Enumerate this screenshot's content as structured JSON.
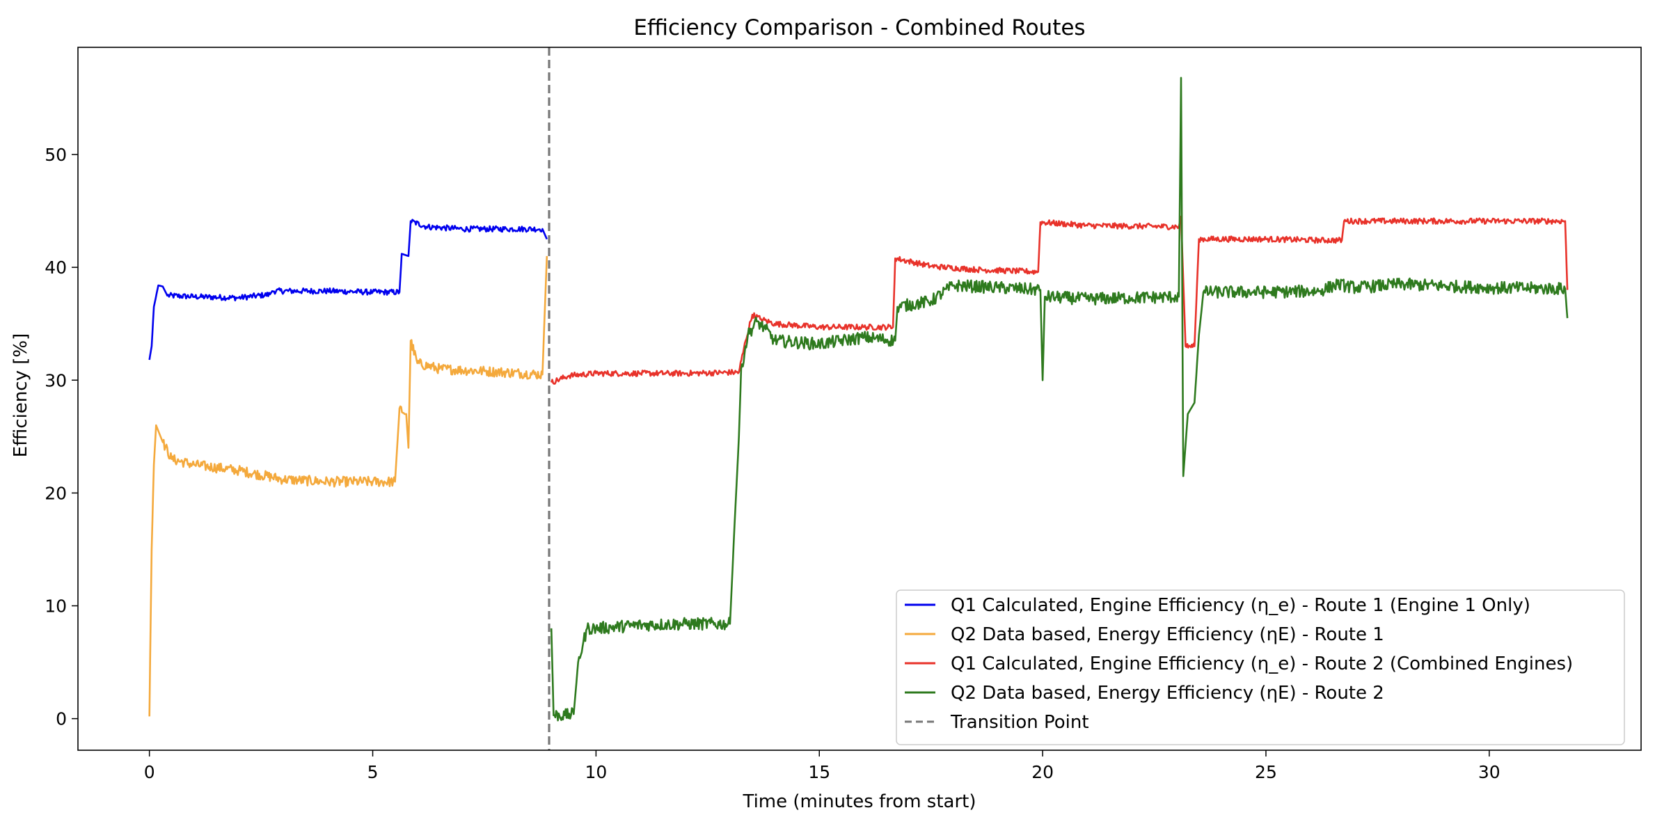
{
  "chart_data": {
    "type": "line",
    "title": "Efficiency Comparison - Combined Routes",
    "xlabel": "Time (minutes from start)",
    "ylabel": "Efficiency [%]",
    "xlim": [
      -1.6,
      33.4
    ],
    "ylim": [
      -2.8,
      59.5
    ],
    "xticks": [
      0,
      5,
      10,
      15,
      20,
      25,
      30
    ],
    "yticks": [
      0,
      10,
      20,
      30,
      40,
      50
    ],
    "grid": false,
    "legend_position": "lower-right",
    "transition": {
      "x": 8.95,
      "label": "Transition Point",
      "color": "#777777"
    },
    "series": [
      {
        "name": "Q1 Calculated, Engine Efficiency (η_e) - Route 1 (Engine 1 Only)",
        "color": "#0000ee",
        "noise": 0.25,
        "points": [
          [
            0.0,
            31.8
          ],
          [
            0.05,
            33.0
          ],
          [
            0.1,
            36.5
          ],
          [
            0.2,
            38.4
          ],
          [
            0.3,
            38.3
          ],
          [
            0.4,
            37.5
          ],
          [
            1.0,
            37.4
          ],
          [
            2.0,
            37.3
          ],
          [
            2.7,
            37.6
          ],
          [
            2.75,
            37.9
          ],
          [
            4.0,
            37.9
          ],
          [
            5.0,
            37.8
          ],
          [
            5.6,
            37.8
          ],
          [
            5.65,
            41.2
          ],
          [
            5.8,
            41.0
          ],
          [
            5.85,
            44.1
          ],
          [
            6.2,
            43.6
          ],
          [
            7.0,
            43.4
          ],
          [
            8.0,
            43.4
          ],
          [
            8.8,
            43.4
          ],
          [
            8.9,
            42.5
          ]
        ]
      },
      {
        "name": "Q2 Data based, Energy Efficiency (ηE) - Route 1",
        "color": "#f4a93c",
        "noise": 0.45,
        "points": [
          [
            0.0,
            0.2
          ],
          [
            0.05,
            15.0
          ],
          [
            0.1,
            22.5
          ],
          [
            0.15,
            26.0
          ],
          [
            0.3,
            24.5
          ],
          [
            0.5,
            23.0
          ],
          [
            1.0,
            22.5
          ],
          [
            2.0,
            22.0
          ],
          [
            3.0,
            21.2
          ],
          [
            4.0,
            21.0
          ],
          [
            5.0,
            21.0
          ],
          [
            5.5,
            21.0
          ],
          [
            5.6,
            27.5
          ],
          [
            5.75,
            27.0
          ],
          [
            5.8,
            24.0
          ],
          [
            5.85,
            33.5
          ],
          [
            6.0,
            31.5
          ],
          [
            6.5,
            31.0
          ],
          [
            7.5,
            30.8
          ],
          [
            8.8,
            30.5
          ],
          [
            8.9,
            41.0
          ]
        ]
      },
      {
        "name": "Q1 Calculated, Engine Efficiency (η_e) - Route 2 (Combined Engines)",
        "color": "#e8322a",
        "noise": 0.25,
        "points": [
          [
            9.0,
            29.8
          ],
          [
            9.4,
            30.4
          ],
          [
            10.0,
            30.6
          ],
          [
            11.0,
            30.6
          ],
          [
            12.0,
            30.6
          ],
          [
            13.2,
            30.7
          ],
          [
            13.35,
            33.5
          ],
          [
            13.5,
            35.8
          ],
          [
            13.7,
            35.4
          ],
          [
            14.0,
            35.0
          ],
          [
            15.0,
            34.7
          ],
          [
            16.0,
            34.7
          ],
          [
            16.65,
            34.7
          ],
          [
            16.7,
            40.8
          ],
          [
            17.5,
            40.1
          ],
          [
            18.5,
            39.8
          ],
          [
            19.9,
            39.6
          ],
          [
            19.95,
            44.0
          ],
          [
            21.0,
            43.7
          ],
          [
            23.05,
            43.6
          ],
          [
            23.1,
            44.5
          ],
          [
            23.2,
            33.0
          ],
          [
            23.4,
            33.0
          ],
          [
            23.5,
            42.5
          ],
          [
            25.0,
            42.5
          ],
          [
            26.2,
            42.4
          ],
          [
            26.7,
            42.4
          ],
          [
            26.75,
            44.1
          ],
          [
            28.0,
            44.1
          ],
          [
            31.7,
            44.1
          ],
          [
            31.75,
            38.0
          ]
        ]
      },
      {
        "name": "Q2 Data based, Energy Efficiency (ηE) - Route 2",
        "color": "#2e7a1e",
        "noise": 0.55,
        "points": [
          [
            9.0,
            8.0
          ],
          [
            9.05,
            0.3
          ],
          [
            9.3,
            0.3
          ],
          [
            9.5,
            0.4
          ],
          [
            9.6,
            5.0
          ],
          [
            9.8,
            8.0
          ],
          [
            10.0,
            8.0
          ],
          [
            11.0,
            8.3
          ],
          [
            12.0,
            8.4
          ],
          [
            13.0,
            8.4
          ],
          [
            13.1,
            17.0
          ],
          [
            13.2,
            25.0
          ],
          [
            13.25,
            31.0
          ],
          [
            13.4,
            34.0
          ],
          [
            13.6,
            35.2
          ],
          [
            13.8,
            34.5
          ],
          [
            14.0,
            33.5
          ],
          [
            15.0,
            33.2
          ],
          [
            16.0,
            33.8
          ],
          [
            16.7,
            33.5
          ],
          [
            16.75,
            36.5
          ],
          [
            17.5,
            37.0
          ],
          [
            18.0,
            38.4
          ],
          [
            19.0,
            38.2
          ],
          [
            19.95,
            38.0
          ],
          [
            20.0,
            30.0
          ],
          [
            20.05,
            37.4
          ],
          [
            21.0,
            37.2
          ],
          [
            22.0,
            37.3
          ],
          [
            23.05,
            37.4
          ],
          [
            23.1,
            56.8
          ],
          [
            23.15,
            21.5
          ],
          [
            23.25,
            27.0
          ],
          [
            23.4,
            28.0
          ],
          [
            23.5,
            34.0
          ],
          [
            23.6,
            37.8
          ],
          [
            25.0,
            37.8
          ],
          [
            26.2,
            37.9
          ],
          [
            26.6,
            38.5
          ],
          [
            27.0,
            38.2
          ],
          [
            28.0,
            38.5
          ],
          [
            30.0,
            38.2
          ],
          [
            31.7,
            38.1
          ],
          [
            31.75,
            35.5
          ]
        ]
      }
    ]
  }
}
